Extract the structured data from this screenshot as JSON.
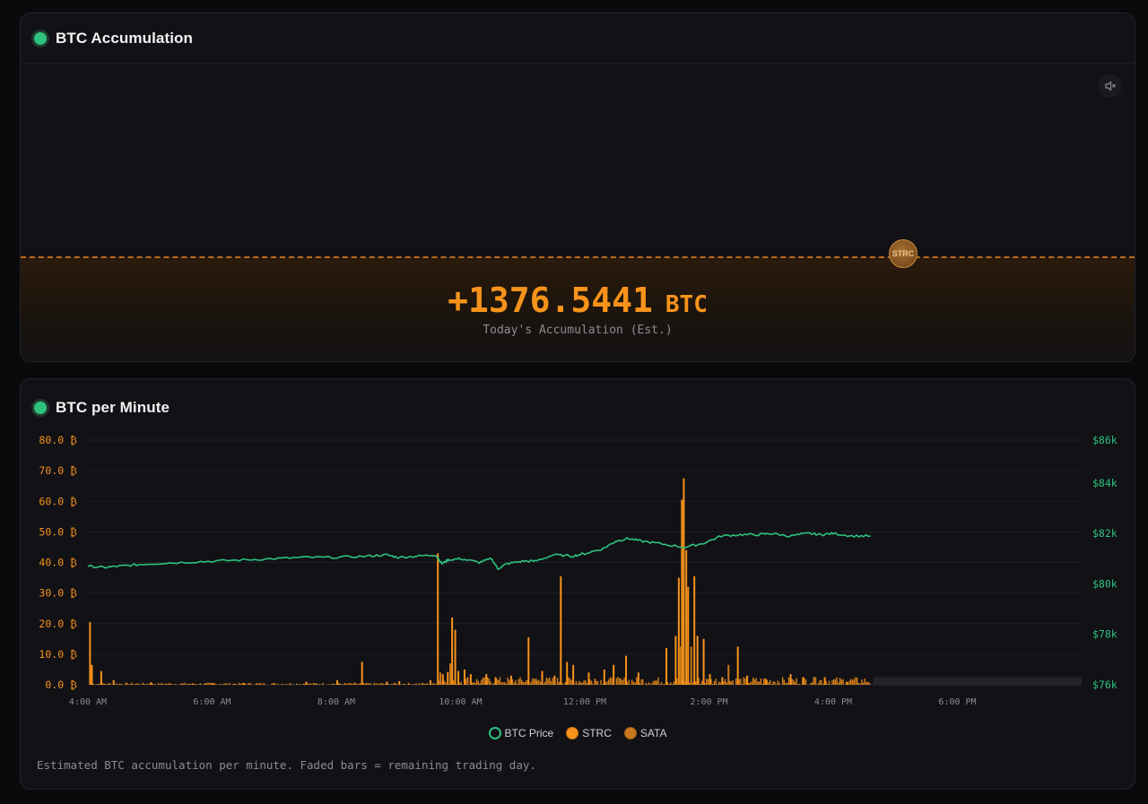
{
  "accumulation": {
    "title": "BTC Accumulation",
    "value": "+1376.5441",
    "unit": "BTC",
    "label": "Today's Accumulation (Est.)",
    "coin_label": "STRC",
    "mute_icon": "speaker-muted-icon"
  },
  "per_minute": {
    "title": "BTC per Minute",
    "footnote": "Estimated BTC accumulation per minute. Faded bars = remaining trading day.",
    "legend": [
      {
        "label": "BTC Price",
        "color": "#2ec27e",
        "style": "ring"
      },
      {
        "label": "STRC",
        "color": "#f7931a",
        "style": "fill"
      },
      {
        "label": "SATA",
        "color": "#c8781e",
        "style": "fill"
      }
    ]
  },
  "colors": {
    "accent": "#f7931a",
    "price": "#2ec27e",
    "background": "#0a0a0c",
    "panel": "#111116"
  },
  "chart_data": {
    "type": "bar",
    "x_axis": {
      "ticks": [
        "4:00 AM",
        "6:00 AM",
        "8:00 AM",
        "10:00 AM",
        "12:00 PM",
        "2:00 PM",
        "4:00 PM",
        "6:00 PM"
      ],
      "range_hours": [
        4,
        20
      ]
    },
    "y_left": {
      "ticks": [
        "0.0 ₿",
        "10.0 ₿",
        "20.0 ₿",
        "30.0 ₿",
        "40.0 ₿",
        "50.0 ₿",
        "60.0 ₿",
        "70.0 ₿",
        "80.0 ₿"
      ],
      "ylim": [
        0,
        80
      ]
    },
    "y_right": {
      "ticks": [
        "$76k",
        "$78k",
        "$80k",
        "$82k",
        "$84k",
        "$86k"
      ],
      "ylim": [
        76000,
        85700
      ]
    },
    "grid": true,
    "legend_position": "bottom",
    "series": [
      {
        "name": "BTC Price",
        "type": "line",
        "axis": "right",
        "points": [
          [
            4.0,
            80700
          ],
          [
            4.25,
            80650
          ],
          [
            4.5,
            80700
          ],
          [
            4.75,
            80750
          ],
          [
            5.0,
            80800
          ],
          [
            5.5,
            80850
          ],
          [
            6.0,
            80900
          ],
          [
            6.5,
            80950
          ],
          [
            7.0,
            81000
          ],
          [
            7.5,
            81050
          ],
          [
            8.0,
            81050
          ],
          [
            8.5,
            81100
          ],
          [
            8.8,
            81150
          ],
          [
            9.0,
            81050
          ],
          [
            9.3,
            81100
          ],
          [
            9.6,
            81150
          ],
          [
            9.7,
            80800
          ],
          [
            9.8,
            80950
          ],
          [
            10.0,
            81000
          ],
          [
            10.3,
            80850
          ],
          [
            10.5,
            81000
          ],
          [
            10.6,
            80600
          ],
          [
            10.75,
            80800
          ],
          [
            11.0,
            80900
          ],
          [
            11.2,
            80900
          ],
          [
            11.5,
            81150
          ],
          [
            11.8,
            81100
          ],
          [
            12.0,
            81200
          ],
          [
            12.3,
            81400
          ],
          [
            12.5,
            81700
          ],
          [
            12.7,
            81800
          ],
          [
            12.9,
            81700
          ],
          [
            13.2,
            81600
          ],
          [
            13.6,
            81450
          ],
          [
            13.9,
            81600
          ],
          [
            14.2,
            81900
          ],
          [
            14.5,
            81950
          ],
          [
            14.8,
            81950
          ],
          [
            15.0,
            82000
          ],
          [
            15.3,
            81900
          ],
          [
            15.6,
            82000
          ],
          [
            15.8,
            81950
          ],
          [
            16.0,
            82000
          ],
          [
            16.3,
            81900
          ],
          [
            16.6,
            81900
          ]
        ]
      },
      {
        "name": "STRC",
        "type": "bar",
        "axis": "left",
        "points": [
          [
            4.02,
            20.5
          ],
          [
            4.05,
            6.5
          ],
          [
            4.2,
            4.5
          ],
          [
            4.4,
            1.5
          ],
          [
            5.0,
            0.8
          ],
          [
            6.0,
            0.6
          ],
          [
            6.5,
            0.6
          ],
          [
            7.5,
            1.0
          ],
          [
            8.0,
            1.5
          ],
          [
            8.4,
            7.5
          ],
          [
            8.8,
            1.0
          ],
          [
            9.0,
            1.2
          ],
          [
            9.5,
            1.5
          ],
          [
            9.62,
            43.0
          ],
          [
            9.7,
            3.5
          ],
          [
            9.78,
            4.2
          ],
          [
            9.85,
            22.0
          ],
          [
            9.9,
            18.0
          ],
          [
            9.95,
            4.5
          ],
          [
            10.05,
            5.0
          ],
          [
            10.15,
            3.5
          ],
          [
            10.4,
            3.5
          ],
          [
            10.55,
            2.5
          ],
          [
            10.8,
            3.0
          ],
          [
            11.08,
            15.5
          ],
          [
            11.3,
            4.5
          ],
          [
            11.5,
            3.0
          ],
          [
            11.6,
            35.5
          ],
          [
            11.7,
            7.5
          ],
          [
            11.8,
            6.5
          ],
          [
            12.05,
            4.0
          ],
          [
            12.3,
            5.0
          ],
          [
            12.45,
            6.5
          ],
          [
            12.65,
            9.5
          ],
          [
            12.85,
            4.0
          ],
          [
            13.3,
            12.0
          ],
          [
            13.45,
            16.0
          ],
          [
            13.5,
            35.0
          ],
          [
            13.55,
            60.5
          ],
          [
            13.58,
            67.5
          ],
          [
            13.62,
            44.0
          ],
          [
            13.65,
            32.0
          ],
          [
            13.75,
            35.5
          ],
          [
            13.8,
            16.0
          ],
          [
            13.9,
            15.0
          ],
          [
            14.0,
            3.5
          ],
          [
            14.2,
            2.5
          ],
          [
            14.45,
            12.5
          ],
          [
            14.6,
            3.0
          ],
          [
            14.9,
            2.0
          ],
          [
            15.3,
            3.5
          ],
          [
            15.5,
            2.5
          ],
          [
            15.85,
            2.5
          ],
          [
            16.2,
            1.0
          ]
        ]
      },
      {
        "name": "SATA",
        "type": "bar",
        "axis": "left",
        "points": [
          [
            9.66,
            4.0
          ],
          [
            9.82,
            7.0
          ],
          [
            10.1,
            2.5
          ],
          [
            11.2,
            2.0
          ],
          [
            12.15,
            2.0
          ],
          [
            13.52,
            12.5
          ],
          [
            13.7,
            12.5
          ],
          [
            14.3,
            6.5
          ],
          [
            15.7,
            2.5
          ]
        ]
      },
      {
        "name": "Remaining trading day",
        "type": "faded-bar",
        "axis": "left",
        "range_hours": [
          16.65,
          20.0
        ],
        "value": 2.5
      }
    ]
  }
}
